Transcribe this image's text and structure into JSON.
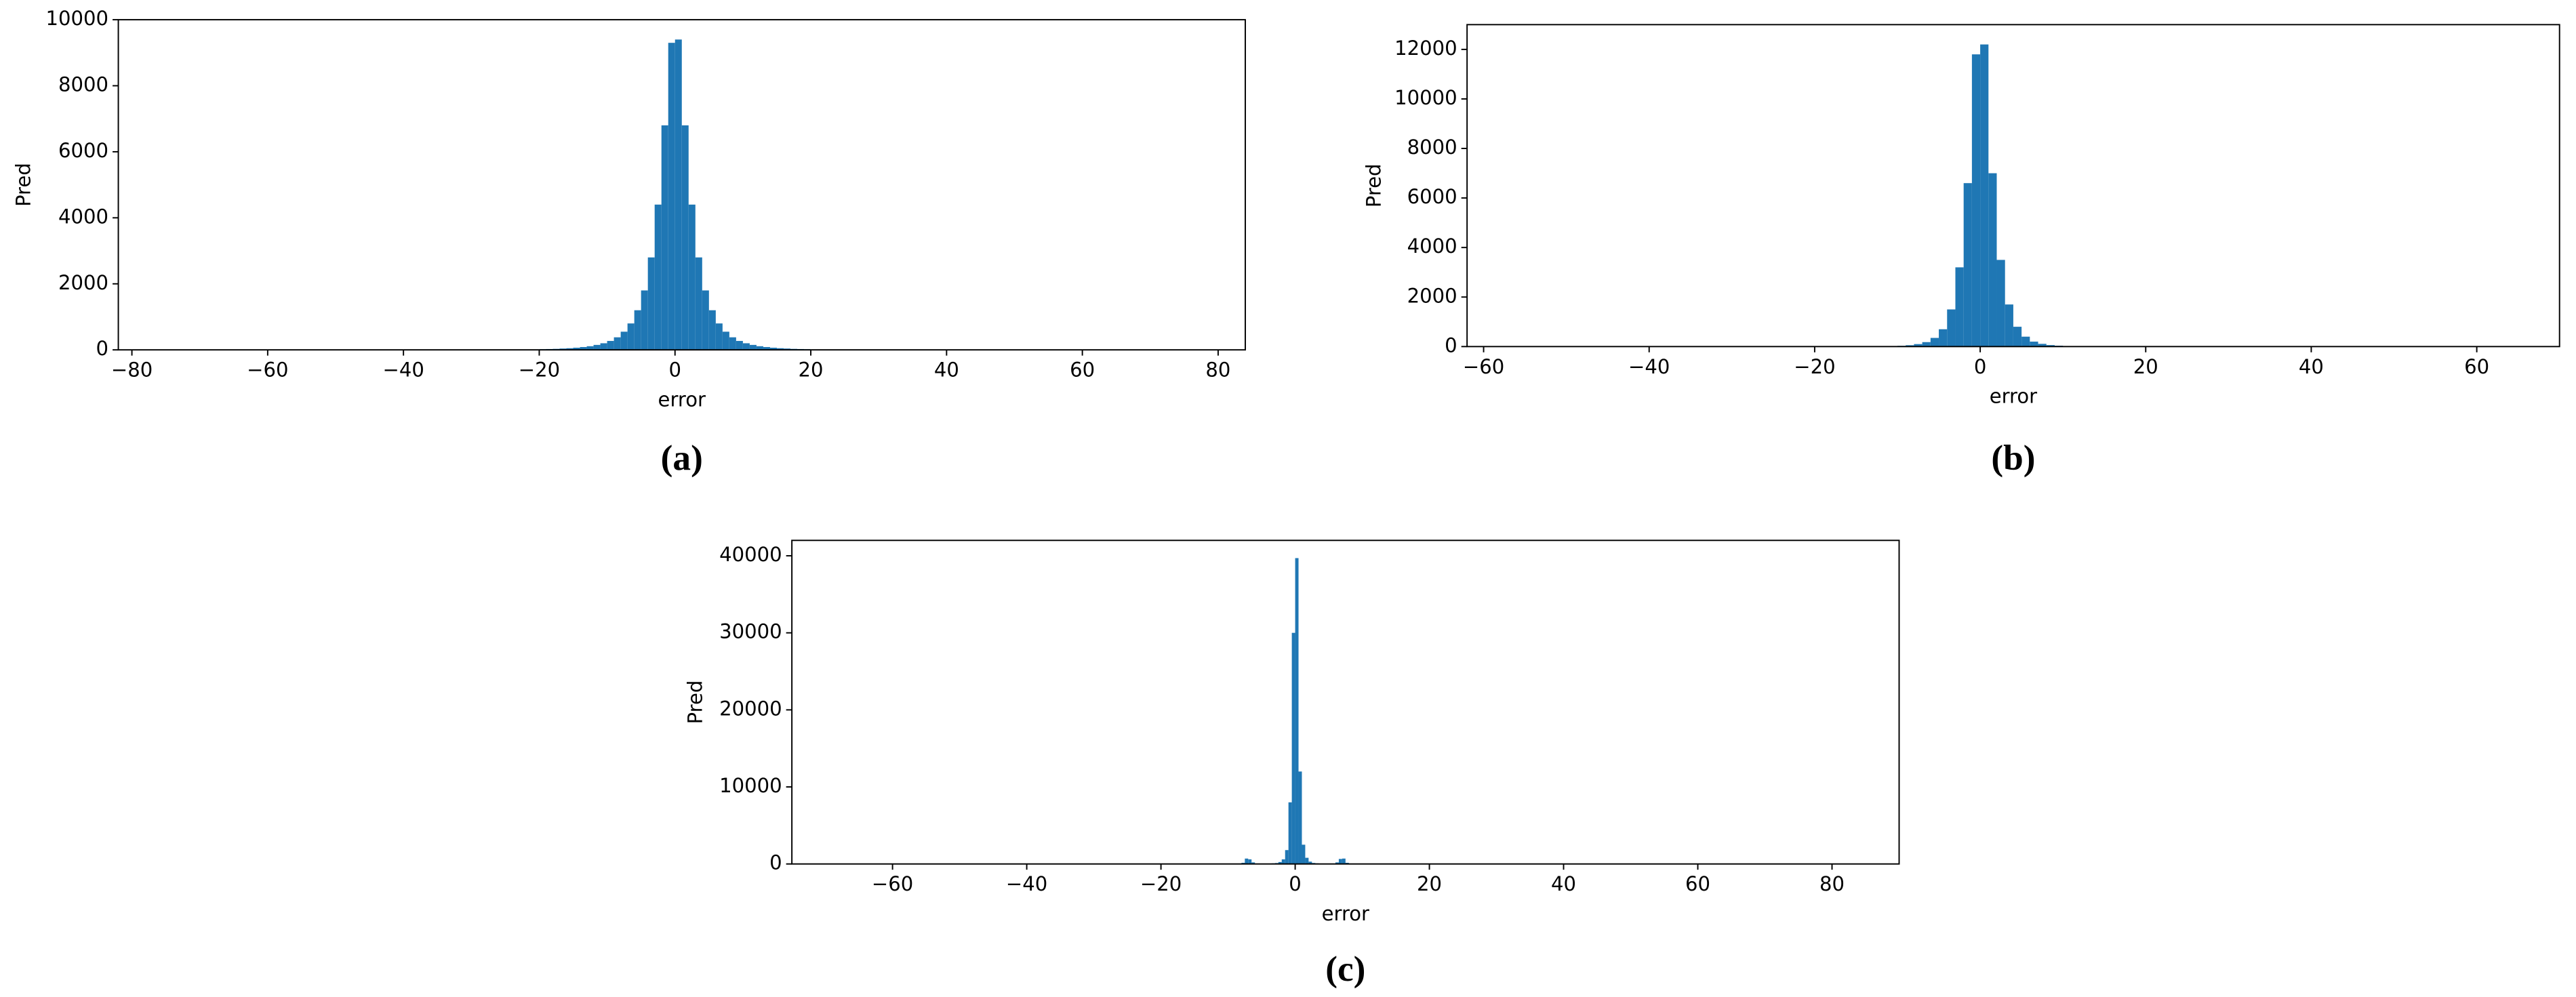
{
  "chart_data": [
    {
      "type": "histogram",
      "caption": "(a)",
      "xlabel": "error",
      "ylabel": "Pred",
      "color": "#1f77b4",
      "bins": [
        -22,
        -21,
        -20,
        -19,
        -18,
        -17,
        -16,
        -15,
        -14,
        -13,
        -12,
        -11,
        -10,
        -9,
        -8,
        -7,
        -6,
        -5,
        -4,
        -3,
        -2,
        -1,
        0,
        1,
        2,
        3,
        4,
        5,
        6,
        7,
        8,
        9,
        10,
        11,
        12,
        13,
        14,
        15,
        16,
        17,
        18,
        19,
        20,
        21,
        22
      ],
      "values": [
        8,
        12,
        20,
        25,
        30,
        40,
        50,
        65,
        85,
        110,
        150,
        200,
        270,
        380,
        550,
        800,
        1200,
        1800,
        2800,
        4400,
        6800,
        9300,
        9400,
        6800,
        4400,
        2800,
        1800,
        1200,
        800,
        550,
        380,
        270,
        200,
        150,
        110,
        85,
        65,
        50,
        40,
        30,
        25,
        20,
        12,
        8
      ],
      "xlim": [
        -82,
        84
      ],
      "ylim": [
        0,
        10000
      ],
      "xticks": [
        {
          "value": -80,
          "label": "−80"
        },
        {
          "value": -60,
          "label": "−60"
        },
        {
          "value": -40,
          "label": "−40"
        },
        {
          "value": -20,
          "label": "−20"
        },
        0,
        20,
        40,
        60,
        80
      ],
      "yticks": [
        0,
        2000,
        4000,
        6000,
        8000,
        10000
      ]
    },
    {
      "type": "histogram",
      "caption": "(b)",
      "xlabel": "error",
      "ylabel": "Pred",
      "color": "#1f77b4",
      "bins": [
        -12,
        -11,
        -10,
        -9,
        -8,
        -7,
        -6,
        -5,
        -4,
        -3,
        -2,
        -1,
        0,
        1,
        2,
        3,
        4,
        5,
        6,
        7,
        8,
        9,
        10,
        11,
        12
      ],
      "values": [
        10,
        18,
        30,
        55,
        100,
        180,
        350,
        700,
        1500,
        3200,
        6600,
        11800,
        12200,
        7000,
        3500,
        1700,
        800,
        400,
        200,
        110,
        60,
        35,
        20,
        10
      ],
      "xlim": [
        -62,
        70
      ],
      "ylim": [
        0,
        13000
      ],
      "xticks": [
        {
          "value": -60,
          "label": "−60"
        },
        {
          "value": -40,
          "label": "−40"
        },
        {
          "value": -20,
          "label": "−20"
        },
        0,
        20,
        40,
        60
      ],
      "yticks": [
        0,
        2000,
        4000,
        6000,
        8000,
        10000,
        12000
      ]
    },
    {
      "type": "histogram",
      "caption": "(c)",
      "xlabel": "error",
      "ylabel": "Pred",
      "color": "#1f77b4",
      "bins": [
        -8,
        -7.5,
        -7,
        -6.5,
        -6,
        -5.5,
        -5,
        -4.5,
        -4,
        -3.5,
        -3,
        -2.5,
        -2,
        -1.5,
        -1,
        -0.5,
        0,
        0.5,
        1,
        1.5,
        2,
        2.5,
        3,
        3.5,
        4,
        4.5,
        5,
        5.5,
        6,
        6.5,
        7,
        7.5,
        8
      ],
      "values": [
        150,
        700,
        600,
        200,
        50,
        30,
        30,
        40,
        50,
        80,
        120,
        250,
        600,
        1800,
        8000,
        30000,
        39700,
        12000,
        2500,
        800,
        300,
        130,
        80,
        50,
        40,
        30,
        30,
        50,
        200,
        650,
        700,
        150
      ],
      "xlim": [
        -75,
        90
      ],
      "ylim": [
        0,
        42000
      ],
      "xticks": [
        {
          "value": -60,
          "label": "−60"
        },
        {
          "value": -40,
          "label": "−40"
        },
        {
          "value": -20,
          "label": "−20"
        },
        0,
        20,
        40,
        60,
        80
      ],
      "yticks": [
        0,
        10000,
        20000,
        30000,
        40000
      ]
    }
  ]
}
